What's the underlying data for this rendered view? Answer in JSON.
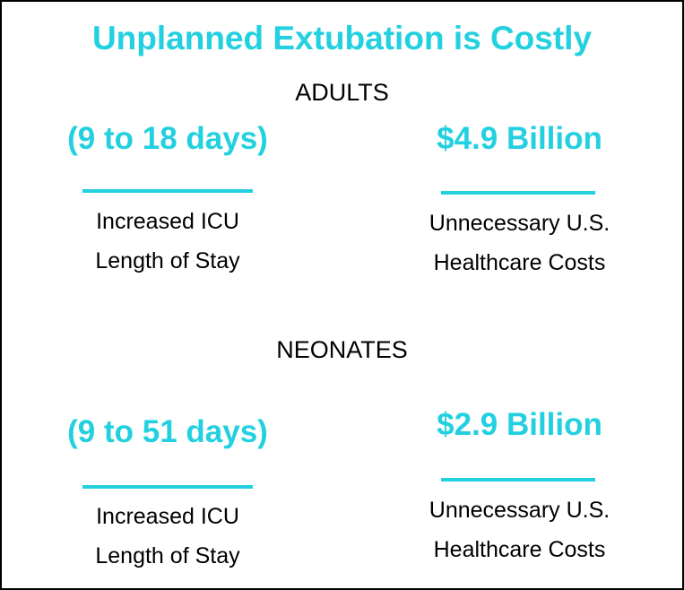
{
  "title": "Unplanned Extubation is Costly",
  "accent_color": "#22d0e0",
  "sections": [
    {
      "heading": "ADULTS",
      "stats": [
        {
          "value": "(9 to 18 days)",
          "desc_line1": "Increased ICU",
          "desc_line2": "Length of Stay"
        },
        {
          "value": "$4.9 Billion",
          "desc_line1": "Unnecessary U.S.",
          "desc_line2": "Healthcare Costs"
        }
      ]
    },
    {
      "heading": "NEONATES",
      "stats": [
        {
          "value": "(9 to 51 days)",
          "desc_line1": "Increased ICU",
          "desc_line2": "Length of Stay"
        },
        {
          "value": "$2.9 Billion",
          "desc_line1": "Unnecessary U.S.",
          "desc_line2": "Healthcare Costs"
        }
      ]
    }
  ]
}
